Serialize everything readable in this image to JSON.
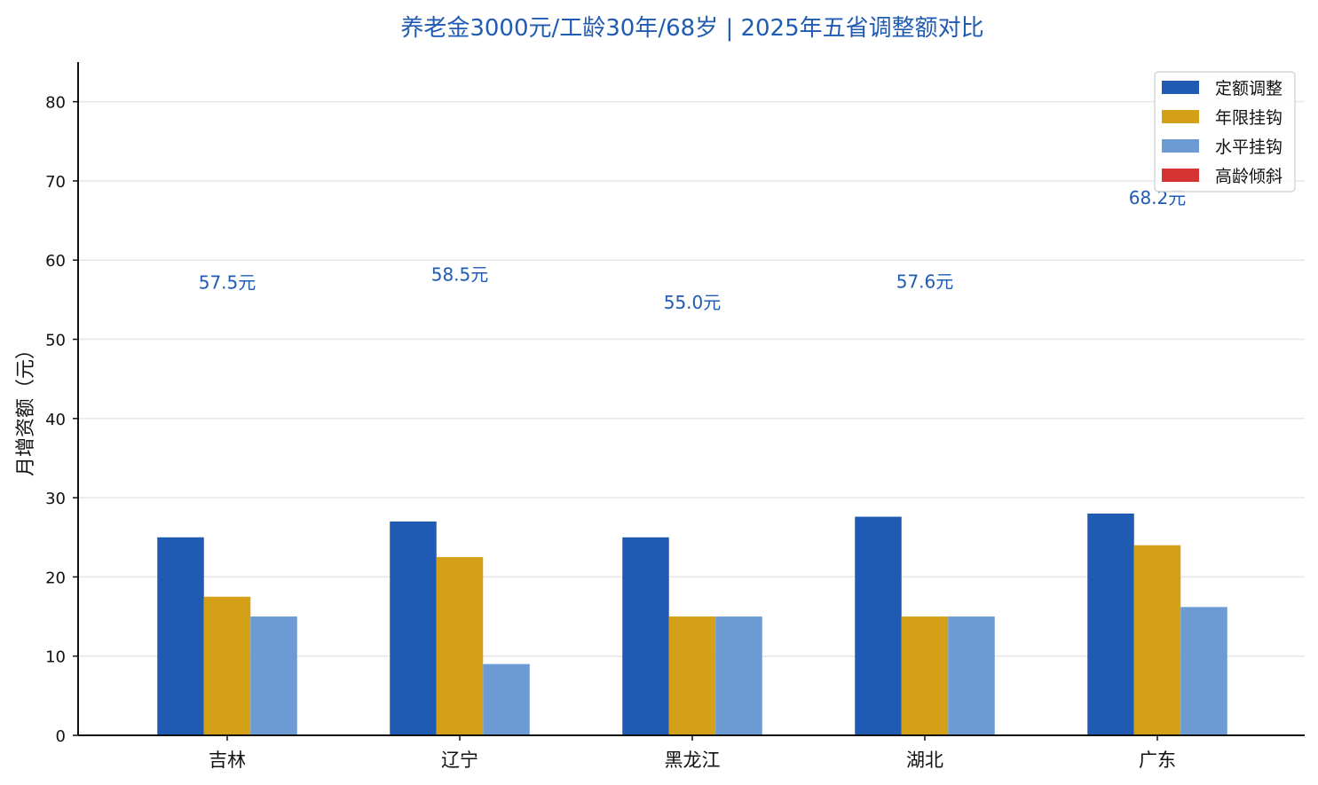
{
  "chart_data": {
    "type": "bar",
    "title": "养老金3000元/工龄30年/68岁 | 2025年五省调整额对比",
    "xlabel": "",
    "ylabel": "月增资额（元）",
    "ylim": [
      0,
      85
    ],
    "yticks": [
      0,
      10,
      20,
      30,
      40,
      50,
      60,
      70,
      80
    ],
    "grid": true,
    "legend_position": "top-right",
    "categories": [
      "吉林",
      "辽宁",
      "黑龙江",
      "湖北",
      "广东"
    ],
    "series": [
      {
        "name": "定额调整",
        "color": "#1f5bb3",
        "values": [
          25.0,
          27.0,
          25.0,
          27.6,
          28.0
        ]
      },
      {
        "name": "年限挂钩",
        "color": "#d4a017",
        "values": [
          17.5,
          22.5,
          15.0,
          15.0,
          24.0
        ]
      },
      {
        "name": "水平挂钩",
        "color": "#6b9bd2",
        "values": [
          15.0,
          9.0,
          15.0,
          15.0,
          16.2
        ]
      },
      {
        "name": "高龄倾斜",
        "color": "#d63333",
        "values": [
          0,
          0,
          0,
          0,
          0
        ]
      }
    ],
    "total_labels": [
      "57.5元",
      "58.5元",
      "55.0元",
      "57.6元",
      "68.2元"
    ],
    "total_values": [
      57.5,
      58.5,
      55.0,
      57.6,
      68.2
    ]
  }
}
